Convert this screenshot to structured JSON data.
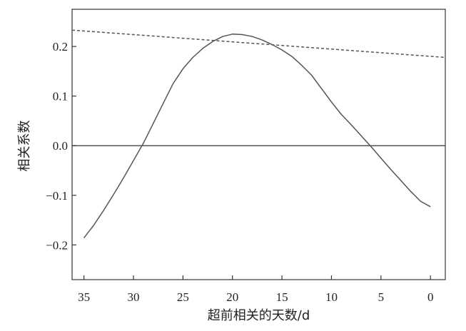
{
  "chart_data": {
    "type": "line",
    "xlabel": "超前相关的天数/d",
    "ylabel": "相关系数",
    "xlim": [
      36.2,
      -1.5
    ],
    "ylim": [
      -0.27,
      0.275
    ],
    "x_ticks": [
      35,
      30,
      25,
      20,
      15,
      10,
      5,
      0
    ],
    "x_tick_labels": [
      "35",
      "30",
      "25",
      "20",
      "15",
      "10",
      "5",
      "0"
    ],
    "y_ticks": [
      0.2,
      0.1,
      0.0,
      -0.1,
      -0.2
    ],
    "y_tick_labels": [
      "0.2",
      "0.1",
      "0.0",
      "−0.1",
      "−0.2"
    ],
    "grid": false,
    "reference_line": {
      "y": 0.0,
      "color": "#555555"
    },
    "series": [
      {
        "style": "solid",
        "color": "#555555",
        "x": [
          35,
          34,
          33,
          32,
          31,
          30,
          29,
          28,
          27,
          26,
          25,
          24,
          23,
          22,
          21,
          20,
          19,
          18,
          17,
          16,
          15,
          14,
          13,
          12,
          11,
          10,
          9,
          8,
          7,
          6,
          5,
          4,
          3,
          2,
          1,
          0
        ],
        "y": [
          -0.186,
          -0.16,
          -0.13,
          -0.098,
          -0.065,
          -0.03,
          0.005,
          0.045,
          0.085,
          0.125,
          0.155,
          0.178,
          0.196,
          0.21,
          0.22,
          0.225,
          0.224,
          0.22,
          0.213,
          0.204,
          0.193,
          0.18,
          0.162,
          0.142,
          0.115,
          0.088,
          0.063,
          0.042,
          0.02,
          -0.002,
          -0.025,
          -0.048,
          -0.07,
          -0.092,
          -0.112,
          -0.123
        ]
      },
      {
        "style": "dashed",
        "color": "#555555",
        "x": [
          36.2,
          -1.5
        ],
        "y": [
          0.233,
          0.178
        ]
      }
    ]
  }
}
